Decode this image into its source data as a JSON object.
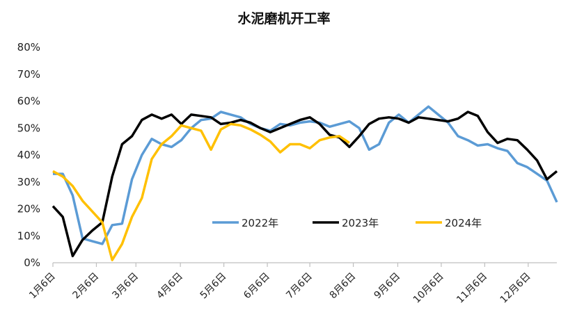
{
  "chart_data": {
    "type": "line",
    "title": "水泥磨机开工率",
    "xlabel": "",
    "ylabel": "",
    "ylim": [
      0,
      80
    ],
    "y_ticks": [
      "0%",
      "10%",
      "20%",
      "30%",
      "40%",
      "50%",
      "60%",
      "70%",
      "80%"
    ],
    "x_ticks": [
      "1月6日",
      "2月6日",
      "3月6日",
      "4月6日",
      "5月6日",
      "6月6日",
      "7月6日",
      "8月6日",
      "9月6日",
      "10月6日",
      "11月6日",
      "12月6日"
    ],
    "x_tick_weeks": [
      0,
      4.4,
      8.4,
      12.9,
      17.3,
      21.7,
      26.0,
      30.4,
      34.9,
      39.3,
      43.7,
      48.1
    ],
    "grid": false,
    "legend_position": "bottom-center",
    "series": [
      {
        "name": "2022年",
        "color": "#5B9BD5",
        "weeks": [
          0,
          1,
          2,
          3,
          4,
          5,
          6,
          7,
          8,
          9,
          10,
          11,
          12,
          13,
          14,
          15,
          16,
          17,
          18,
          19,
          20,
          21,
          22,
          23,
          24,
          25,
          26,
          27,
          28,
          29,
          30,
          31,
          32,
          33,
          34,
          35,
          36,
          37,
          38,
          39,
          40,
          41,
          42,
          43,
          44,
          45,
          46,
          47,
          48,
          49,
          50,
          51
        ],
        "values": [
          33,
          33,
          25,
          9,
          8,
          7,
          14,
          14.5,
          31,
          40,
          46,
          44,
          43,
          45.5,
          50,
          53,
          53.5,
          56,
          55,
          54,
          51.5,
          50,
          49,
          51.5,
          51,
          52,
          52.5,
          52,
          50.5,
          51.5,
          52.5,
          50,
          42,
          44,
          52,
          55,
          52,
          55,
          58,
          55,
          52,
          47,
          45.5,
          43.5,
          44,
          42.5,
          41.5,
          37,
          35.5,
          33,
          30.5,
          22.5
        ]
      },
      {
        "name": "2023年",
        "color": "#000000",
        "weeks": [
          0,
          1,
          2,
          3,
          4,
          5,
          6,
          7,
          8,
          9,
          10,
          11,
          12,
          13,
          14,
          15,
          16,
          17,
          18,
          19,
          20,
          21,
          22,
          23,
          24,
          25,
          26,
          27,
          28,
          29,
          30,
          31,
          32,
          33,
          34,
          35,
          36,
          37,
          38,
          39,
          40,
          41,
          42,
          43,
          44,
          45,
          46,
          47,
          48,
          49,
          50,
          51
        ],
        "values": [
          21,
          17,
          2.5,
          8.5,
          12,
          15,
          32,
          44,
          47,
          53,
          55,
          53.5,
          55,
          51.5,
          55,
          54.5,
          54,
          51.5,
          52,
          53,
          52,
          50,
          48.5,
          50,
          51.5,
          53,
          54,
          51.5,
          47.5,
          46.5,
          43,
          47,
          51.5,
          53.5,
          54,
          53.5,
          52,
          54,
          53.5,
          53,
          52.5,
          53.5,
          56,
          54.5,
          48.5,
          44.5,
          46,
          45.5,
          42,
          38,
          31,
          34
        ]
      },
      {
        "name": "2024年",
        "color": "#FFC000",
        "weeks": [
          0,
          1,
          2,
          3,
          4,
          5,
          6,
          7,
          8,
          9,
          10,
          11,
          12,
          13,
          14,
          15,
          16,
          17,
          18,
          19,
          20,
          21,
          22,
          23,
          24,
          25,
          26,
          27,
          28,
          29,
          30
        ],
        "values": [
          34,
          32,
          28.5,
          23,
          19,
          15,
          1,
          7,
          17,
          24,
          38.5,
          44,
          47,
          51,
          50,
          49,
          42,
          49.5,
          51.5,
          51,
          49.5,
          47.5,
          45,
          41,
          44,
          44,
          42.5,
          45.5,
          46.5,
          47,
          44.5
        ]
      }
    ]
  }
}
